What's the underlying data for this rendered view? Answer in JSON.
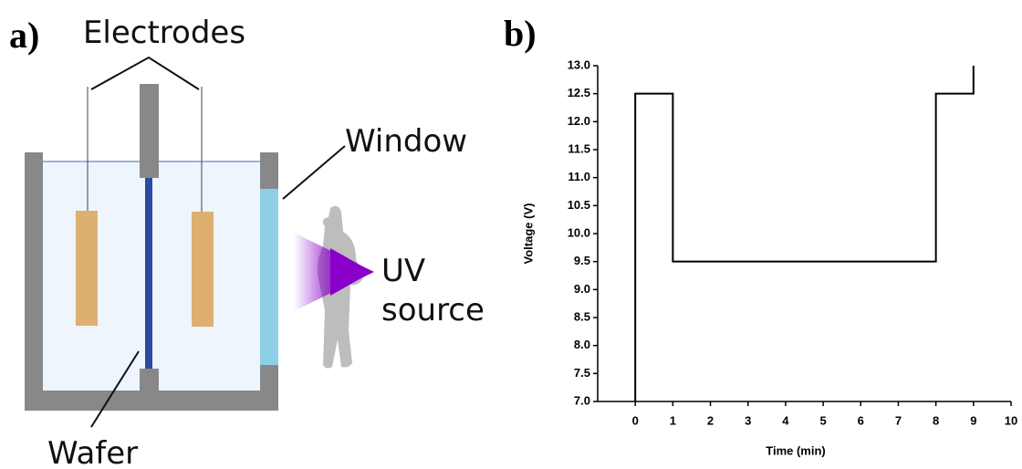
{
  "diagram": {
    "panel_label": "a)",
    "labels": [
      "Electrodes",
      "Window",
      "UV",
      "source",
      "Wafer"
    ]
  },
  "chart_data": {
    "type": "line",
    "panel_label": "b)",
    "x_label": "Time (min)",
    "y_label": "Voltage (V)",
    "x": [
      0,
      0,
      1,
      1,
      8,
      8,
      9,
      9
    ],
    "series": [
      {
        "color": "#000000",
        "values": [
          7.0,
          12.5,
          12.5,
          9.5,
          9.5,
          12.5,
          12.5,
          13.0
        ]
      }
    ],
    "xlim": [
      -1,
      10
    ],
    "xticks": [
      0,
      1,
      2,
      3,
      4,
      5,
      6,
      7,
      8,
      9,
      10
    ],
    "ylim": [
      7,
      13
    ],
    "yticks": [
      {
        "value": 7,
        "label": "7.0"
      },
      7.5,
      {
        "value": 8,
        "label": "8.0"
      },
      8.5,
      {
        "value": 9,
        "label": "9.0"
      },
      9.5,
      {
        "value": 10,
        "label": "10.0"
      },
      10.5,
      {
        "value": 11,
        "label": "11.0"
      },
      11.5,
      {
        "value": 12,
        "label": "12.0"
      },
      12.5,
      {
        "value": 13,
        "label": "13.0"
      }
    ]
  }
}
